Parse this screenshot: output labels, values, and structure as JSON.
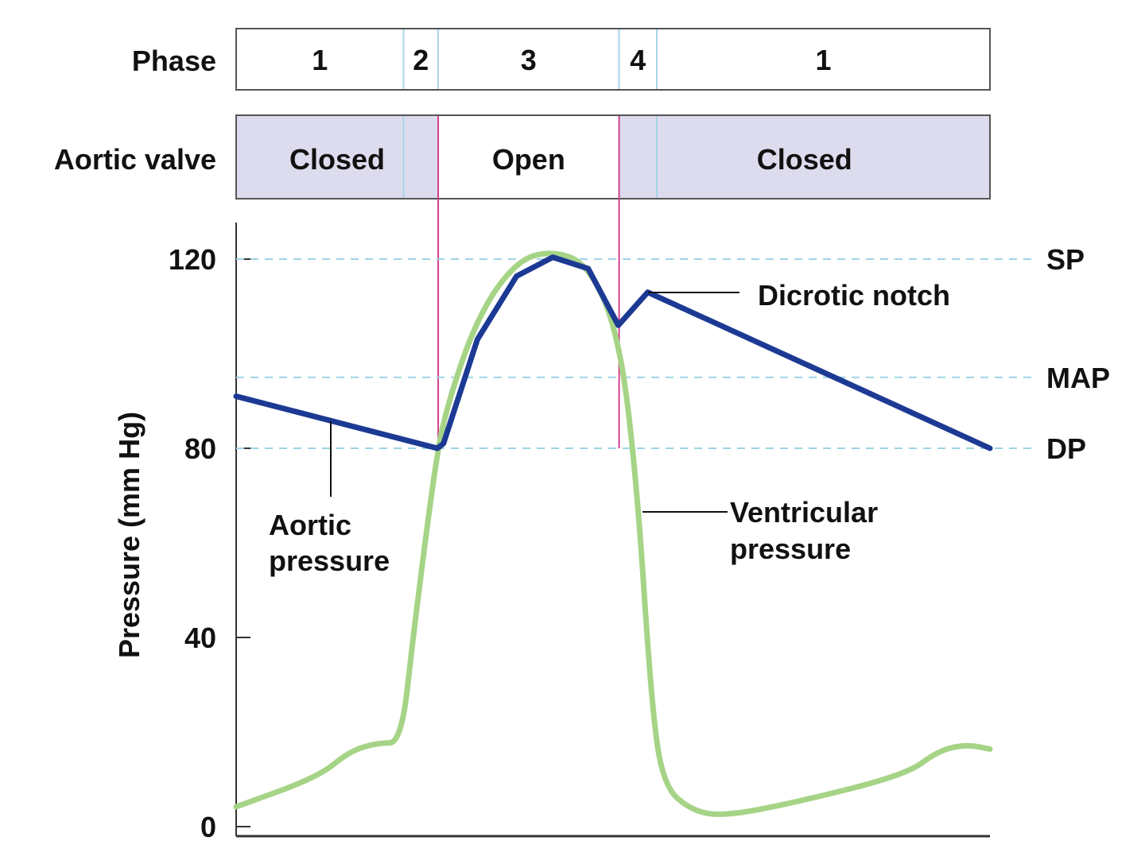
{
  "chart_data": {
    "type": "line",
    "title": "",
    "xlabel": "",
    "ylabel": "Pressure (mm Hg)",
    "ylim": [
      0,
      120
    ],
    "xlim": [
      0,
      100
    ],
    "yticks": [
      "0",
      "40",
      "80",
      "120"
    ],
    "ytick_values": [
      0,
      40,
      80,
      120
    ],
    "grid": false,
    "reference_lines": [
      {
        "label": "SP",
        "value": 120
      },
      {
        "label": "MAP",
        "value": 95
      },
      {
        "label": "DP",
        "value": 80
      }
    ],
    "phase_row": {
      "label": "Phase",
      "boundaries": [
        22.2,
        26.8,
        50.8,
        55.8
      ],
      "segments": [
        "1",
        "2",
        "3",
        "4",
        "1"
      ]
    },
    "valve_row": {
      "label": "Aortic valve",
      "segments": [
        {
          "label": "Closed",
          "from": 0,
          "to": 26.8,
          "open": false
        },
        {
          "label": "Open",
          "from": 26.8,
          "to": 50.8,
          "open": true
        },
        {
          "label": "Closed",
          "from": 50.8,
          "to": 100,
          "open": false
        }
      ]
    },
    "series": [
      {
        "name": "Aortic pressure",
        "color": "#1c3a94",
        "x": [
          0,
          26.7,
          27.5,
          32,
          37.2,
          42,
          46.7,
          50.7,
          54.6,
          100
        ],
        "y": [
          91,
          80,
          81,
          103,
          116.4,
          120.4,
          118,
          106,
          113,
          80
        ]
      },
      {
        "name": "Ventricular pressure",
        "color": "#a6d486",
        "x": [
          0,
          10.9,
          15.1,
          18.8,
          21.9,
          23.5,
          26.2,
          27.7,
          32,
          37.2,
          42,
          46.7,
          50.7,
          53.1,
          55.2,
          56.8,
          60.4,
          64.7,
          74.2,
          88.9,
          93.1,
          96.8,
          100
        ],
        "y": [
          4.2,
          10.5,
          16,
          17.7,
          17.7,
          40.5,
          74.2,
          87.7,
          107.9,
          119.7,
          121.8,
          118.9,
          104.6,
          74.2,
          23.6,
          8.4,
          3.4,
          2.2,
          5.1,
          11,
          16,
          17.4,
          16.4
        ]
      }
    ],
    "annotations": [
      {
        "text": "Dicrotic notch",
        "x": 54.6,
        "y": 113
      },
      {
        "text_lines": [
          "Aortic",
          "pressure"
        ],
        "x": 12.5,
        "y": 86
      },
      {
        "text_lines": [
          "Ventricular",
          "pressure"
        ],
        "x": 54.5,
        "y": 67
      }
    ]
  }
}
